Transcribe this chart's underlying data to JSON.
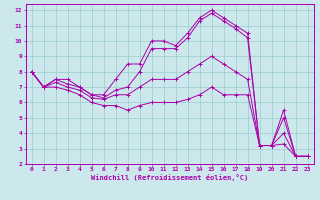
{
  "xlabel": "Windchill (Refroidissement éolien,°C)",
  "background_color": "#cce8ec",
  "line_color": "#aa00aa",
  "grid_color": "#99cccc",
  "xlim": [
    -0.5,
    23.5
  ],
  "ylim": [
    2,
    12.4
  ],
  "xticks": [
    0,
    1,
    2,
    3,
    4,
    5,
    6,
    7,
    8,
    9,
    10,
    11,
    12,
    13,
    14,
    15,
    16,
    17,
    18,
    19,
    20,
    21,
    22,
    23
  ],
  "yticks": [
    2,
    3,
    4,
    5,
    6,
    7,
    8,
    9,
    10,
    11,
    12
  ],
  "series": [
    [
      8.0,
      7.0,
      7.5,
      7.5,
      7.0,
      6.5,
      6.5,
      7.5,
      8.5,
      8.5,
      10.0,
      10.0,
      9.7,
      10.5,
      11.5,
      12.0,
      11.5,
      11.0,
      10.5,
      3.2,
      3.2,
      5.5,
      2.5,
      2.5
    ],
    [
      8.0,
      7.0,
      7.5,
      7.2,
      7.0,
      6.5,
      6.3,
      6.8,
      7.0,
      8.0,
      9.5,
      9.5,
      9.5,
      10.2,
      11.3,
      11.8,
      11.3,
      10.8,
      10.2,
      3.2,
      3.2,
      5.0,
      2.5,
      2.5
    ],
    [
      8.0,
      7.0,
      7.3,
      7.0,
      6.8,
      6.3,
      6.2,
      6.5,
      6.5,
      7.0,
      7.5,
      7.5,
      7.5,
      8.0,
      8.5,
      9.0,
      8.5,
      8.0,
      7.5,
      3.2,
      3.2,
      4.0,
      2.5,
      2.5
    ],
    [
      8.0,
      7.0,
      7.0,
      6.8,
      6.5,
      6.0,
      5.8,
      5.8,
      5.5,
      5.8,
      6.0,
      6.0,
      6.0,
      6.2,
      6.5,
      7.0,
      6.5,
      6.5,
      6.5,
      3.2,
      3.2,
      3.3,
      2.5,
      2.5
    ]
  ]
}
